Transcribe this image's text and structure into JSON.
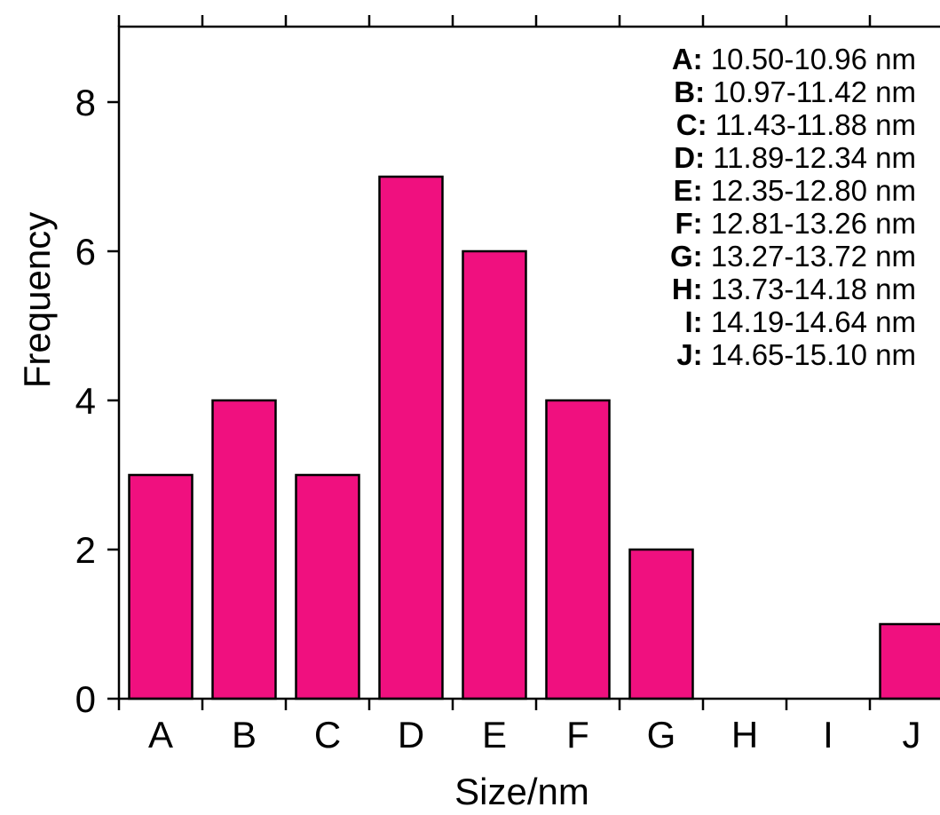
{
  "chart_data": {
    "type": "bar",
    "title": "",
    "xlabel": "Size/nm",
    "ylabel": "Frequency",
    "categories": [
      "A",
      "B",
      "C",
      "D",
      "E",
      "F",
      "G",
      "H",
      "I",
      "J"
    ],
    "values": [
      3,
      4,
      3,
      7,
      6,
      4,
      2,
      0,
      0,
      1
    ],
    "ylim": [
      0,
      9
    ],
    "yticks": [
      0,
      2,
      4,
      6,
      8
    ],
    "bar_color": "#f0107f",
    "grid": false,
    "legend_position": "top-right",
    "legend": [
      {
        "key": "A:",
        "range": "10.50-10.96 nm"
      },
      {
        "key": "B:",
        "range": "10.97-11.42 nm"
      },
      {
        "key": "C:",
        "range": "11.43-11.88 nm"
      },
      {
        "key": "D:",
        "range": "11.89-12.34 nm"
      },
      {
        "key": "E:",
        "range": "12.35-12.80 nm"
      },
      {
        "key": "F:",
        "range": "12.81-13.26 nm"
      },
      {
        "key": "G:",
        "range": "13.27-13.72 nm"
      },
      {
        "key": "H:",
        "range": "13.73-14.18 nm"
      },
      {
        "key": "I:",
        "range": "14.19-14.64 nm"
      },
      {
        "key": "J:",
        "range": "14.65-15.10 nm"
      }
    ]
  }
}
